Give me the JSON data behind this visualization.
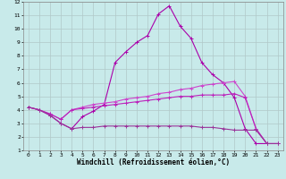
{
  "background_color": "#c8eaea",
  "grid_color": "#b0c8c8",
  "xlim": [
    -0.5,
    23.5
  ],
  "ylim": [
    1,
    12
  ],
  "xticks": [
    0,
    1,
    2,
    3,
    4,
    5,
    6,
    7,
    8,
    9,
    10,
    11,
    12,
    13,
    14,
    15,
    16,
    17,
    18,
    19,
    20,
    21,
    22,
    23
  ],
  "yticks": [
    1,
    2,
    3,
    4,
    5,
    6,
    7,
    8,
    9,
    10,
    11,
    12
  ],
  "xlabel": "Windchill (Refroidissement éolien,°C)",
  "series": [
    {
      "x": [
        0,
        1,
        2,
        3,
        4,
        5,
        6,
        7,
        8,
        9,
        10,
        11,
        12,
        13,
        14,
        15,
        16,
        17,
        18,
        19,
        20,
        21,
        22,
        23
      ],
      "y": [
        4.2,
        4.0,
        3.6,
        3.0,
        2.6,
        3.5,
        3.9,
        4.4,
        7.5,
        8.3,
        9.0,
        9.5,
        11.1,
        11.7,
        10.2,
        9.3,
        7.5,
        6.6,
        6.0,
        4.9,
        2.6,
        1.5,
        1.5,
        null
      ]
    },
    {
      "x": [
        0,
        1,
        2,
        3,
        4,
        5,
        6,
        7,
        8,
        9,
        10,
        11,
        12,
        13,
        14,
        15,
        16,
        17,
        18,
        19,
        20,
        21,
        22,
        23
      ],
      "y": [
        4.2,
        4.0,
        3.7,
        3.3,
        4.0,
        4.2,
        4.4,
        4.5,
        4.6,
        4.8,
        4.9,
        5.0,
        5.2,
        5.3,
        5.5,
        5.6,
        5.8,
        5.9,
        6.0,
        6.1,
        5.0,
        2.6,
        1.5,
        1.5
      ]
    },
    {
      "x": [
        0,
        1,
        2,
        3,
        4,
        5,
        6,
        7,
        8,
        9,
        10,
        11,
        12,
        13,
        14,
        15,
        16,
        17,
        18,
        19,
        20,
        21,
        22,
        23
      ],
      "y": [
        4.2,
        4.0,
        3.7,
        3.3,
        4.0,
        4.1,
        4.2,
        4.3,
        4.4,
        4.5,
        4.6,
        4.7,
        4.8,
        4.9,
        5.0,
        5.0,
        5.1,
        5.1,
        5.1,
        5.2,
        4.9,
        2.6,
        1.5,
        1.5
      ]
    },
    {
      "x": [
        0,
        1,
        2,
        3,
        4,
        5,
        6,
        7,
        8,
        9,
        10,
        11,
        12,
        13,
        14,
        15,
        16,
        17,
        18,
        19,
        20,
        21,
        22,
        23
      ],
      "y": [
        4.2,
        4.0,
        3.6,
        3.0,
        2.6,
        2.7,
        2.7,
        2.8,
        2.8,
        2.8,
        2.8,
        2.8,
        2.8,
        2.8,
        2.8,
        2.8,
        2.7,
        2.7,
        2.6,
        2.5,
        2.5,
        2.5,
        1.5,
        1.5
      ]
    }
  ],
  "line_colors": [
    "#aa00aa",
    "#cc44cc",
    "#bb22bb",
    "#993399"
  ],
  "marker": "+",
  "markersize": 3,
  "linewidth": 0.8,
  "axis_fontsize": 5.5,
  "tick_fontsize": 4.5
}
